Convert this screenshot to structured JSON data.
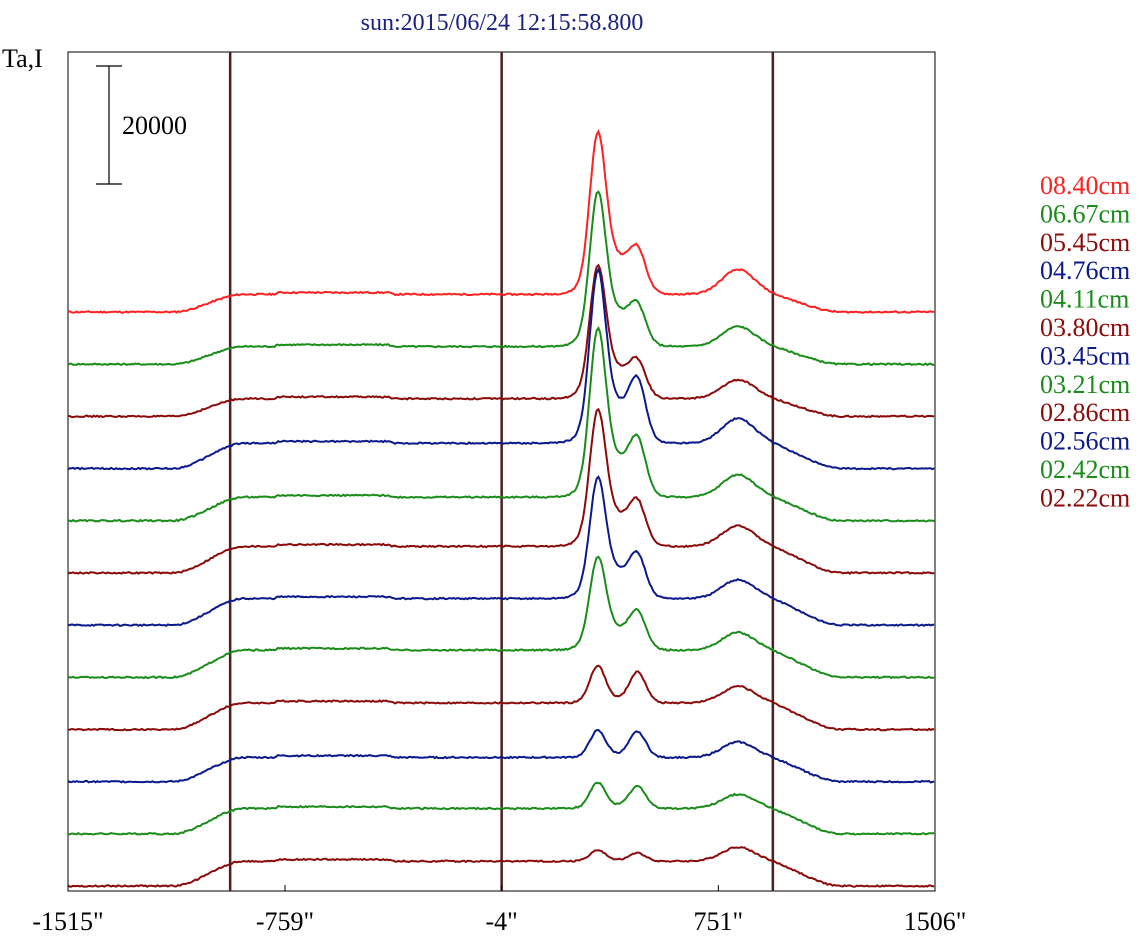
{
  "chart_data": {
    "type": "line",
    "title": "sun:2015/06/24 12:15:58.800",
    "ylabel": "Ta,I",
    "scale_bar_label": "20000",
    "xlim": [
      -1515,
      1506
    ],
    "x_ticks": [
      {
        "value": -1515,
        "label": "-1515\""
      },
      {
        "value": -759,
        "label": "-759\""
      },
      {
        "value": -4,
        "label": "-4\""
      },
      {
        "value": 751,
        "label": "751\""
      },
      {
        "value": 1506,
        "label": "1506\""
      }
    ],
    "limb_lines_x": [
      -950,
      -4,
      941
    ],
    "legend_position": "right",
    "series": [
      {
        "name": "08.40cm",
        "color": "#ff2020",
        "baseline": 0,
        "peak": 22500,
        "secondary": 5800,
        "plateau": 3000,
        "limb_bump": 4200
      },
      {
        "name": "06.67cm",
        "color": "#1a8c1a",
        "baseline": 0,
        "peak": 21500,
        "secondary": 5200,
        "plateau": 3000,
        "limb_bump": 3400
      },
      {
        "name": "05.45cm",
        "color": "#8b0a0a",
        "baseline": 0,
        "peak": 18500,
        "secondary": 4800,
        "plateau": 3000,
        "limb_bump": 3200
      },
      {
        "name": "04.76cm",
        "color": "#0a1a8c",
        "baseline": 0,
        "peak": 24000,
        "secondary": 8600,
        "plateau": 4300,
        "limb_bump": 4200
      },
      {
        "name": "04.11cm",
        "color": "#1a8c1a",
        "baseline": 0,
        "peak": 23500,
        "secondary": 7800,
        "plateau": 4000,
        "limb_bump": 3800
      },
      {
        "name": "03.80cm",
        "color": "#8b0a0a",
        "baseline": 0,
        "peak": 19000,
        "secondary": 6000,
        "plateau": 4500,
        "limb_bump": 3500
      },
      {
        "name": "03.45cm",
        "color": "#0a1a8c",
        "baseline": 0,
        "peak": 16800,
        "secondary": 6000,
        "plateau": 4500,
        "limb_bump": 3200
      },
      {
        "name": "03.21cm",
        "color": "#1a8c1a",
        "baseline": 0,
        "peak": 13000,
        "secondary": 5400,
        "plateau": 4600,
        "limb_bump": 3000
      },
      {
        "name": "02.86cm",
        "color": "#8b0a0a",
        "baseline": 0,
        "peak": 5800,
        "secondary": 5000,
        "plateau": 4500,
        "limb_bump": 2800
      },
      {
        "name": "02.56cm",
        "color": "#0a1a8c",
        "baseline": 0,
        "peak": 4200,
        "secondary": 4200,
        "plateau": 4100,
        "limb_bump": 2600
      },
      {
        "name": "02.42cm",
        "color": "#1a8c1a",
        "baseline": 0,
        "peak": 4000,
        "secondary": 3600,
        "plateau": 4300,
        "limb_bump": 2400
      },
      {
        "name": "02.22cm",
        "color": "#8b0a0a",
        "baseline": 0,
        "peak": 1700,
        "secondary": 1300,
        "plateau": 4200,
        "limb_bump": 2400
      }
    ]
  }
}
